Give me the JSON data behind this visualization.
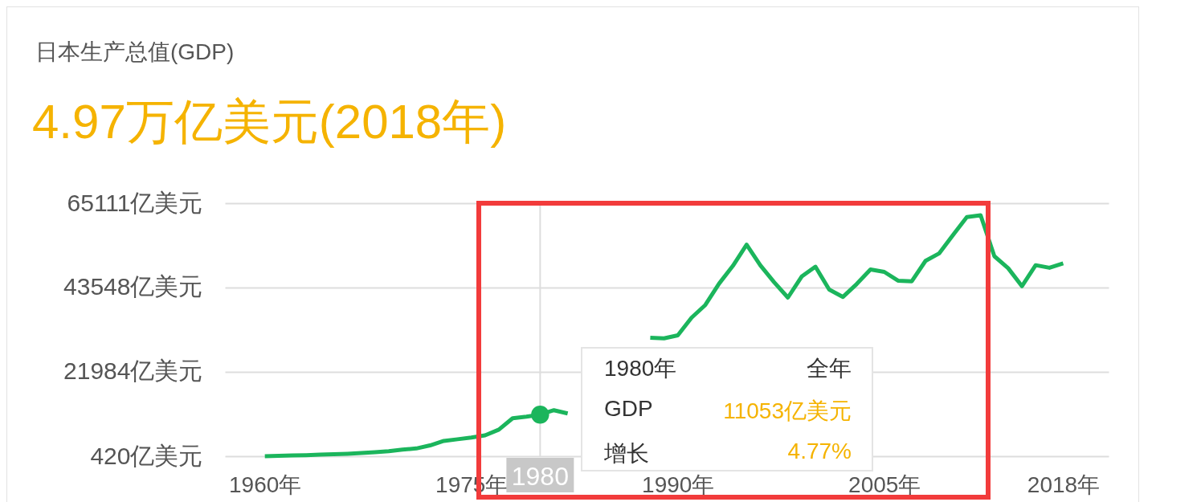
{
  "chart_data": {
    "type": "line",
    "title": "日本生产总值(GDP)",
    "subtitle": "4.97万亿美元(2018年)",
    "x": [
      1960,
      1961,
      1962,
      1963,
      1964,
      1965,
      1966,
      1967,
      1968,
      1969,
      1970,
      1971,
      1972,
      1973,
      1974,
      1975,
      1976,
      1977,
      1978,
      1979,
      1980,
      1981,
      1982,
      1983,
      1984,
      1985,
      1986,
      1987,
      1988,
      1989,
      1990,
      1991,
      1992,
      1993,
      1994,
      1995,
      1996,
      1997,
      1998,
      1999,
      2000,
      2001,
      2002,
      2003,
      2004,
      2005,
      2006,
      2007,
      2008,
      2009,
      2010,
      2011,
      2012,
      2013,
      2014,
      2015,
      2016,
      2017,
      2018
    ],
    "series": [
      {
        "color": "#1bb55c",
        "values": [
          443,
          536,
          609,
          697,
          818,
          910,
          1058,
          1237,
          1469,
          1720,
          2126,
          2403,
          3182,
          4323,
          4762,
          5200,
          5762,
          7211,
          10133,
          10551,
          11053,
          12181,
          11345,
          null,
          null,
          null,
          null,
          null,
          30716,
          30546,
          31328,
          35842,
          39088,
          44548,
          49074,
          54491,
          49237,
          44923,
          40980,
          46355,
          48875,
          43036,
          41150,
          44457,
          48151,
          47554,
          45303,
          45153,
          50379,
          52311,
          57001,
          61574,
          62032,
          51557,
          48504,
          43895,
          49266,
          48600,
          49713
        ]
      },
      {
        "type": "scatter",
        "marker": "circle",
        "color": "#1bb55c",
        "x": [
          1980
        ],
        "values": [
          11053
        ]
      }
    ],
    "xlim": [
      1957.1,
      2021.3
    ],
    "xticks": [
      {
        "value": 1960,
        "label": "1960年"
      },
      {
        "value": 1975,
        "label": "1975年"
      },
      {
        "value": 1990,
        "label": "1990年"
      },
      {
        "value": 2005,
        "label": "2005年"
      },
      {
        "value": 2018,
        "label": "2018年"
      }
    ],
    "ylim": [
      420,
      65111
    ],
    "yticks": [
      {
        "value": 420,
        "label": "420亿美元"
      },
      {
        "value": 21984,
        "label": "21984亿美元"
      },
      {
        "value": 43548,
        "label": "43548亿美元"
      },
      {
        "value": 65111,
        "label": "65111亿美元"
      }
    ],
    "grid": "y",
    "marker": "none",
    "line_style": "solid",
    "ref_lines": [
      {
        "axis": "x",
        "value": 1980,
        "label": "1980",
        "color": "#dddddd"
      }
    ],
    "annotations": [
      "1980年",
      "全年",
      "GDP",
      "11053亿美元",
      "增长",
      "4.77%"
    ]
  }
}
